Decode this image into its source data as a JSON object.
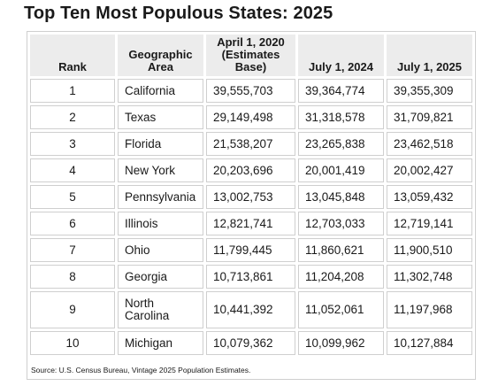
{
  "title": "Top Ten Most Populous States: 2025",
  "source": "Source: U.S. Census Bureau, Vintage 2025 Population Estimates.",
  "chart_data": {
    "type": "table",
    "title": "Top Ten Most Populous States: 2025",
    "columns": [
      "Rank",
      "Geographic Area",
      "April 1, 2020 (Estimates Base)",
      "July 1, 2024",
      "July 1, 2025"
    ],
    "rows": [
      {
        "rank": "1",
        "area": "California",
        "base2020": "39,555,703",
        "jul2024": "39,364,774",
        "jul2025": "39,355,309"
      },
      {
        "rank": "2",
        "area": "Texas",
        "base2020": "29,149,498",
        "jul2024": "31,318,578",
        "jul2025": "31,709,821"
      },
      {
        "rank": "3",
        "area": "Florida",
        "base2020": "21,538,207",
        "jul2024": "23,265,838",
        "jul2025": "23,462,518"
      },
      {
        "rank": "4",
        "area": "New York",
        "base2020": "20,203,696",
        "jul2024": "20,001,419",
        "jul2025": "20,002,427"
      },
      {
        "rank": "5",
        "area": "Pennsylvania",
        "base2020": "13,002,753",
        "jul2024": "13,045,848",
        "jul2025": "13,059,432"
      },
      {
        "rank": "6",
        "area": "Illinois",
        "base2020": "12,821,741",
        "jul2024": "12,703,033",
        "jul2025": "12,719,141"
      },
      {
        "rank": "7",
        "area": "Ohio",
        "base2020": "11,799,445",
        "jul2024": "11,860,621",
        "jul2025": "11,900,510"
      },
      {
        "rank": "8",
        "area": "Georgia",
        "base2020": "10,713,861",
        "jul2024": "11,204,208",
        "jul2025": "11,302,748"
      },
      {
        "rank": "9",
        "area": "North Carolina",
        "base2020": "10,441,392",
        "jul2024": "11,052,061",
        "jul2025": "11,197,968"
      },
      {
        "rank": "10",
        "area": "Michigan",
        "base2020": "10,079,362",
        "jul2024": "10,099,962",
        "jul2025": "10,127,884"
      }
    ]
  },
  "colors": {
    "header_bg": "#ececec",
    "border": "#cfcfcf",
    "text": "#1a1a1a"
  }
}
